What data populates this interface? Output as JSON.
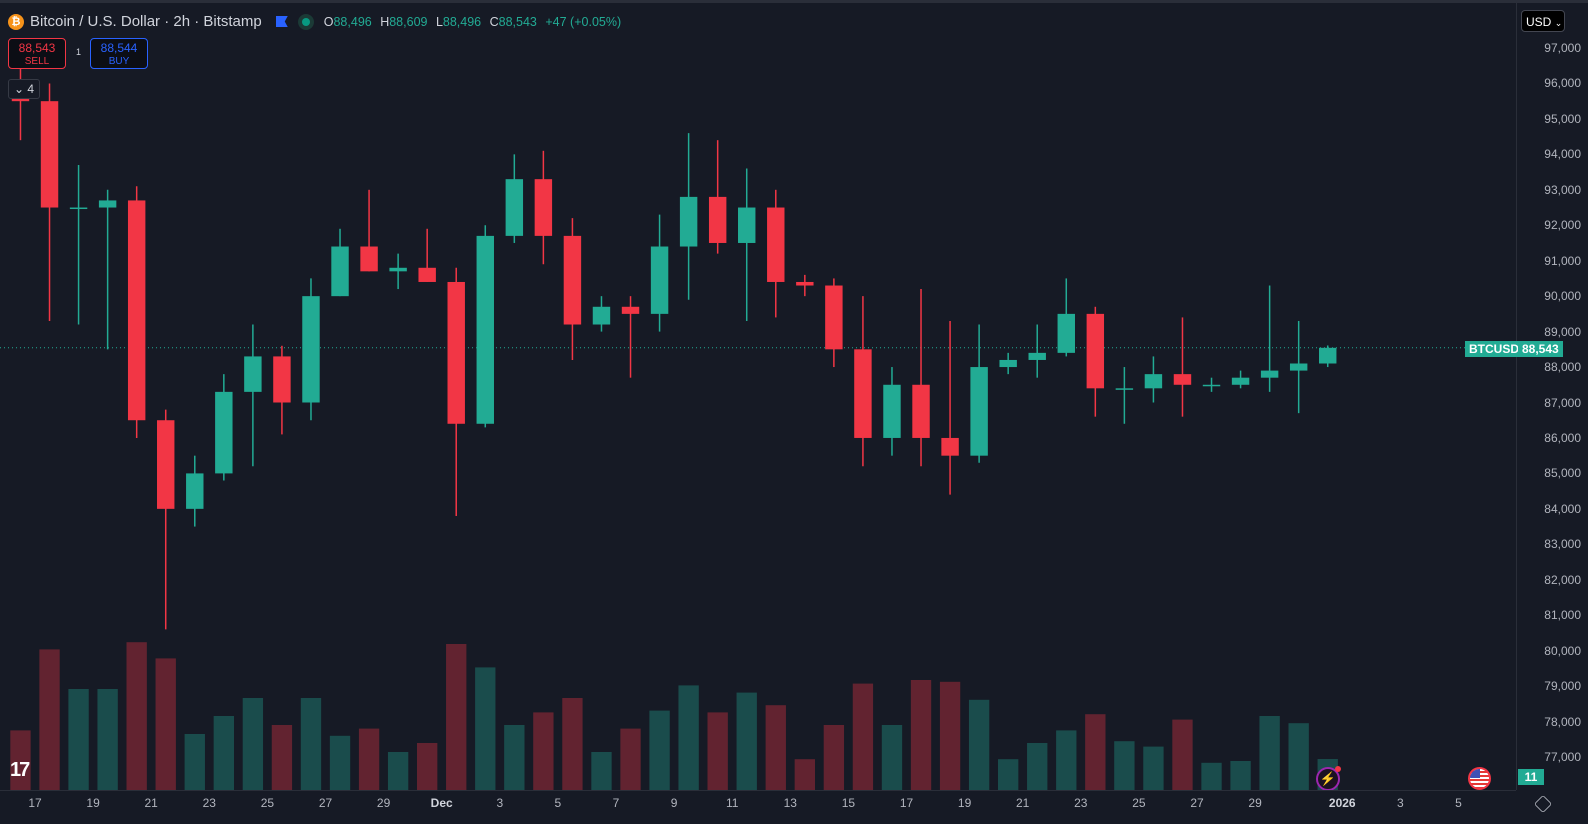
{
  "header": {
    "symbol_icon": "bitcoin-icon",
    "title": "Bitcoin / U.S. Dollar · 2h · Bitstamp",
    "open_label": "O",
    "open": "88,496",
    "high_label": "H",
    "high": "88,609",
    "low_label": "L",
    "low": "88,496",
    "close_label": "C",
    "close": "88,543",
    "change": "+47 (+0.05%)"
  },
  "trade": {
    "sell_price": "88,543",
    "sell_label": "SELL",
    "quantity": "1",
    "buy_price": "88,544",
    "buy_label": "BUY"
  },
  "indicators_toggle": "4",
  "currency": "USD",
  "last_price_tag": {
    "symbol": "BTCUSD",
    "price": "88,543"
  },
  "volume_tag": "11",
  "colors": {
    "up": "#22ab94",
    "down": "#f23645",
    "background": "#161a25",
    "accent": "#2962ff"
  },
  "chart_data": {
    "type": "candlestick",
    "title": "Bitcoin / U.S. Dollar · 2h · Bitstamp",
    "ylim": [
      76500,
      97500
    ],
    "y_ticks": [
      "97,000",
      "96,000",
      "95,000",
      "94,000",
      "93,000",
      "92,000",
      "91,000",
      "90,000",
      "89,000",
      "88,000",
      "87,000",
      "86,000",
      "85,000",
      "84,000",
      "83,000",
      "82,000",
      "81,000",
      "80,000",
      "79,000",
      "78,000",
      "77,000"
    ],
    "x_ticks": [
      "17",
      "19",
      "21",
      "23",
      "25",
      "27",
      "29",
      "Dec",
      "3",
      "5",
      "7",
      "9",
      "11",
      "13",
      "15",
      "17",
      "19",
      "21",
      "23",
      "25",
      "27",
      "29",
      "2026",
      "3",
      "5"
    ],
    "grid": false,
    "last_price": 88543,
    "daily_ohlc": [
      {
        "date": "Nov 16",
        "o": 96000,
        "h": 96600,
        "l": 94400,
        "c": 95500
      },
      {
        "date": "Nov 17",
        "o": 95500,
        "h": 96000,
        "l": 89300,
        "c": 92500
      },
      {
        "date": "Nov 18",
        "o": 92500,
        "h": 93700,
        "l": 89200,
        "c": 92500
      },
      {
        "date": "Nov 19",
        "o": 92500,
        "h": 93000,
        "l": 88500,
        "c": 92700
      },
      {
        "date": "Nov 20",
        "o": 92700,
        "h": 93100,
        "l": 86000,
        "c": 86500
      },
      {
        "date": "Nov 21",
        "o": 86500,
        "h": 86800,
        "l": 80600,
        "c": 84000
      },
      {
        "date": "Nov 22",
        "o": 84000,
        "h": 85500,
        "l": 83500,
        "c": 85000
      },
      {
        "date": "Nov 23",
        "o": 85000,
        "h": 87800,
        "l": 84800,
        "c": 87300
      },
      {
        "date": "Nov 24",
        "o": 87300,
        "h": 89200,
        "l": 85200,
        "c": 88300
      },
      {
        "date": "Nov 25",
        "o": 88300,
        "h": 88600,
        "l": 86100,
        "c": 87000
      },
      {
        "date": "Nov 26",
        "o": 87000,
        "h": 90500,
        "l": 86500,
        "c": 90000
      },
      {
        "date": "Nov 27",
        "o": 90000,
        "h": 91900,
        "l": 90000,
        "c": 91400
      },
      {
        "date": "Nov 28",
        "o": 91400,
        "h": 93000,
        "l": 90700,
        "c": 90700
      },
      {
        "date": "Nov 29",
        "o": 90700,
        "h": 91200,
        "l": 90200,
        "c": 90800
      },
      {
        "date": "Nov 30",
        "o": 90800,
        "h": 91900,
        "l": 90400,
        "c": 90400
      },
      {
        "date": "Dec 1",
        "o": 90400,
        "h": 90800,
        "l": 83800,
        "c": 86400
      },
      {
        "date": "Dec 2",
        "o": 86400,
        "h": 92000,
        "l": 86300,
        "c": 91700
      },
      {
        "date": "Dec 3",
        "o": 91700,
        "h": 94000,
        "l": 91500,
        "c": 93300
      },
      {
        "date": "Dec 4",
        "o": 93300,
        "h": 94100,
        "l": 90900,
        "c": 91700
      },
      {
        "date": "Dec 5",
        "o": 91700,
        "h": 92200,
        "l": 88200,
        "c": 89200
      },
      {
        "date": "Dec 6",
        "o": 89200,
        "h": 90000,
        "l": 89000,
        "c": 89700
      },
      {
        "date": "Dec 7",
        "o": 89700,
        "h": 90000,
        "l": 87700,
        "c": 89500
      },
      {
        "date": "Dec 8",
        "o": 89500,
        "h": 92300,
        "l": 89000,
        "c": 91400
      },
      {
        "date": "Dec 9",
        "o": 91400,
        "h": 94600,
        "l": 89900,
        "c": 92800
      },
      {
        "date": "Dec 10",
        "o": 92800,
        "h": 94400,
        "l": 91200,
        "c": 91500
      },
      {
        "date": "Dec 11",
        "o": 91500,
        "h": 93600,
        "l": 89300,
        "c": 92500
      },
      {
        "date": "Dec 12",
        "o": 92500,
        "h": 93000,
        "l": 89400,
        "c": 90400
      },
      {
        "date": "Dec 13",
        "o": 90400,
        "h": 90600,
        "l": 90000,
        "c": 90300
      },
      {
        "date": "Dec 14",
        "o": 90300,
        "h": 90500,
        "l": 88000,
        "c": 88500
      },
      {
        "date": "Dec 15",
        "o": 88500,
        "h": 90000,
        "l": 85200,
        "c": 86000
      },
      {
        "date": "Dec 16",
        "o": 86000,
        "h": 88000,
        "l": 85500,
        "c": 87500
      },
      {
        "date": "Dec 17",
        "o": 87500,
        "h": 90200,
        "l": 85200,
        "c": 86000
      },
      {
        "date": "Dec 18",
        "o": 86000,
        "h": 89300,
        "l": 84400,
        "c": 85500
      },
      {
        "date": "Dec 19",
        "o": 85500,
        "h": 89200,
        "l": 85300,
        "c": 88000
      },
      {
        "date": "Dec 20",
        "o": 88000,
        "h": 88400,
        "l": 87800,
        "c": 88200
      },
      {
        "date": "Dec 21",
        "o": 88200,
        "h": 89200,
        "l": 87700,
        "c": 88400
      },
      {
        "date": "Dec 22",
        "o": 88400,
        "h": 90500,
        "l": 88300,
        "c": 89500
      },
      {
        "date": "Dec 23",
        "o": 89500,
        "h": 89700,
        "l": 86600,
        "c": 87400
      },
      {
        "date": "Dec 24",
        "o": 87400,
        "h": 88000,
        "l": 86400,
        "c": 87400
      },
      {
        "date": "Dec 25",
        "o": 87400,
        "h": 88300,
        "l": 87000,
        "c": 87800
      },
      {
        "date": "Dec 26",
        "o": 87800,
        "h": 89400,
        "l": 86600,
        "c": 87500
      },
      {
        "date": "Dec 27",
        "o": 87500,
        "h": 87700,
        "l": 87300,
        "c": 87500
      },
      {
        "date": "Dec 28",
        "o": 87500,
        "h": 87900,
        "l": 87400,
        "c": 87700
      },
      {
        "date": "Dec 29",
        "o": 87700,
        "h": 90300,
        "l": 87300,
        "c": 87900
      },
      {
        "date": "Dec 30",
        "o": 87900,
        "h": 89300,
        "l": 86700,
        "c": 88100
      },
      {
        "date": "Dec 31",
        "o": 88100,
        "h": 88609,
        "l": 88000,
        "c": 88543
      }
    ]
  }
}
